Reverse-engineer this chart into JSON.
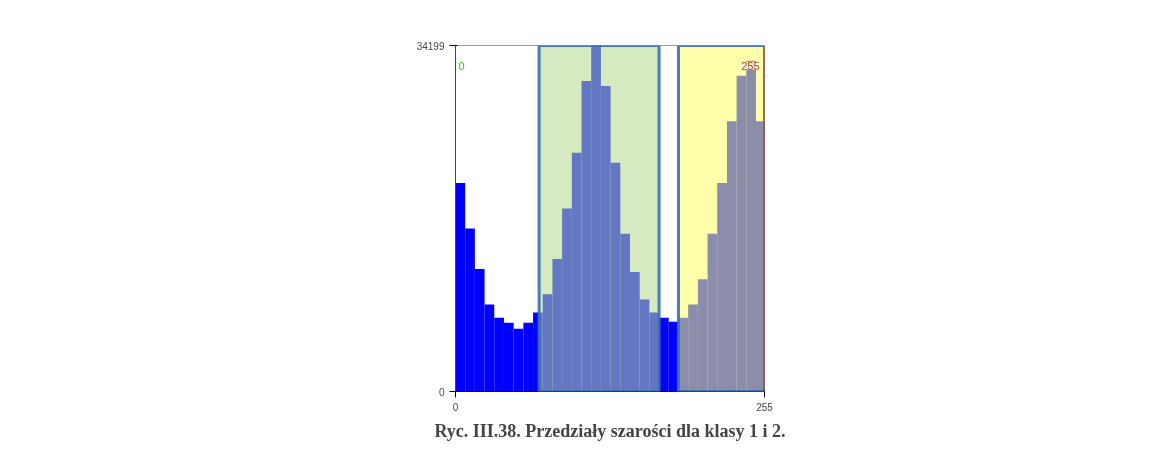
{
  "chart_data": {
    "type": "histogram",
    "title": "Ryc. III.38. Przedziały szarości dla klasy 1 i 2.",
    "bins": [
      0,
      8,
      16,
      24,
      32,
      40,
      48,
      56,
      64,
      72,
      80,
      88,
      96,
      104,
      112,
      120,
      128,
      136,
      144,
      152,
      160,
      168,
      176,
      184,
      192,
      200,
      208,
      216,
      224,
      232,
      240,
      248,
      255
    ],
    "values": [
      20600,
      16100,
      12100,
      8600,
      7300,
      6800,
      6200,
      6800,
      7800,
      9600,
      13100,
      18100,
      23600,
      30700,
      34199,
      30200,
      22600,
      15600,
      11800,
      9100,
      7800,
      7300,
      6900,
      7300,
      8600,
      11100,
      15600,
      20600,
      26700,
      31200,
      32700,
      26700
    ],
    "color": "#0000ff",
    "xlim": [
      0,
      255
    ],
    "ylim": [
      0,
      34199
    ],
    "xticks": [
      0,
      255
    ],
    "yticks": [
      0,
      34199
    ],
    "bands": [
      {
        "axis": "x",
        "from": 69,
        "to": 168,
        "color": "#b5d890"
      },
      {
        "axis": "x",
        "from": 184,
        "to": 255,
        "color": "#ffff66"
      }
    ],
    "ref_lines": [
      {
        "axis": "x",
        "value": 0,
        "label": "0",
        "color": "#22cc22"
      },
      {
        "axis": "x",
        "value": 255,
        "label": "255",
        "color": "#b04a00"
      }
    ]
  }
}
